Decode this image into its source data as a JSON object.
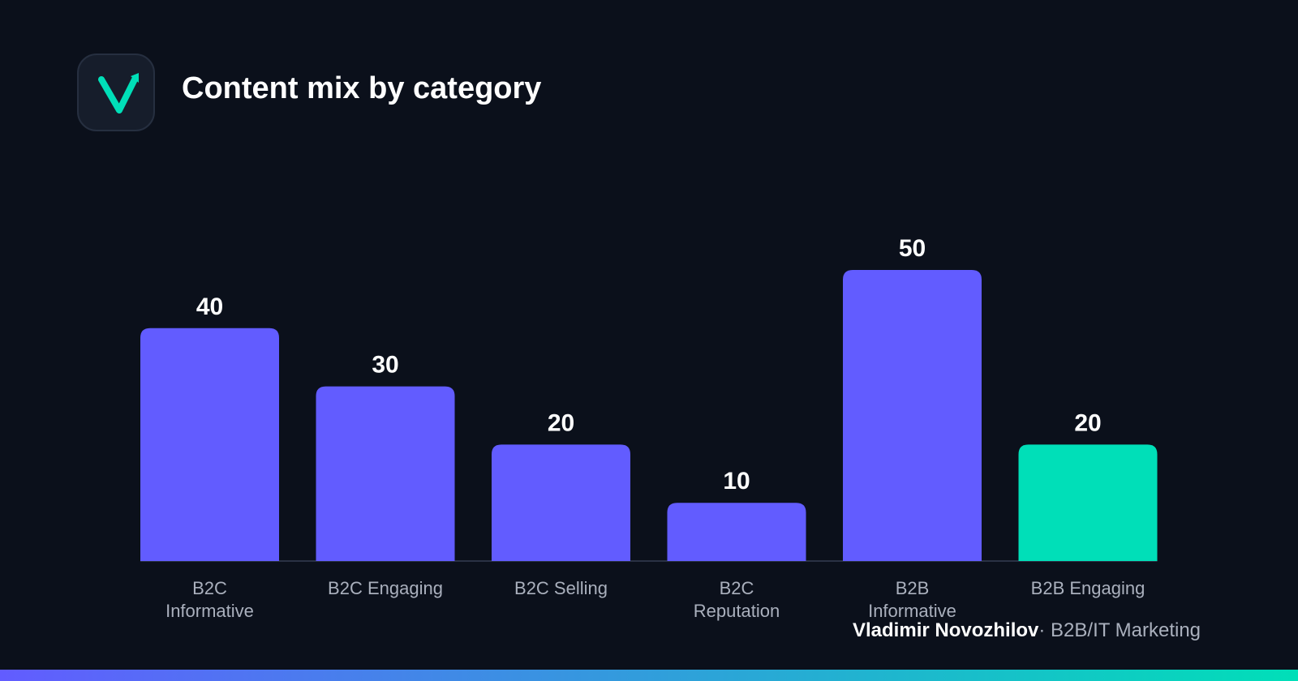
{
  "header": {
    "logo_icon": "check-arrow-icon",
    "title": "Content mix by category"
  },
  "colors": {
    "background": "#0b101b",
    "bar_primary": "#625cff",
    "bar_highlight": "#00dfb8",
    "axis_line": "#2a3144",
    "label_text": "#aab0bd",
    "value_text": "#ffffff",
    "accent_gradient_start": "#625cff",
    "accent_gradient_end": "#00dfb8"
  },
  "chart_data": {
    "type": "bar",
    "categories": [
      [
        "B2C",
        "Informative"
      ],
      [
        "B2C Engaging"
      ],
      [
        "B2C Selling"
      ],
      [
        "B2C",
        "Reputation"
      ],
      [
        "B2B",
        "Informative"
      ],
      [
        "B2B Engaging"
      ]
    ],
    "values": [
      40,
      30,
      20,
      10,
      50,
      20
    ],
    "highlight_index": 5,
    "title": "Content mix by category",
    "xlabel": "",
    "ylabel": "",
    "ylim": [
      0,
      50
    ],
    "grid": false,
    "data_labels": true
  },
  "footer": {
    "author": "Vladimir Novozhilov",
    "separator": "·",
    "tagline": "B2B/IT Marketing"
  }
}
